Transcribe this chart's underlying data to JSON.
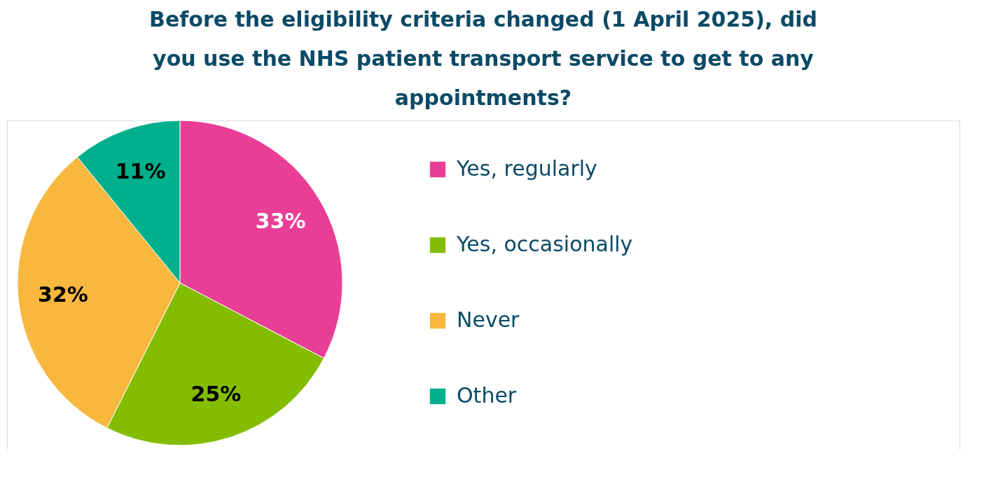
{
  "chart_data": {
    "type": "pie",
    "title": "Before the eligibility criteria changed (1 April 2025), did you use the NHS patient transport service to get to any appointments?",
    "categories": [
      "Yes, regularly",
      "Yes, occasionally",
      "Never",
      "Other"
    ],
    "values": [
      33,
      25,
      32,
      11
    ],
    "colors": [
      "#e83e96",
      "#84bd00",
      "#f8b83e",
      "#00b08c"
    ],
    "value_labels": [
      "33%",
      "25%",
      "32%",
      "11%"
    ],
    "legend": "right"
  }
}
